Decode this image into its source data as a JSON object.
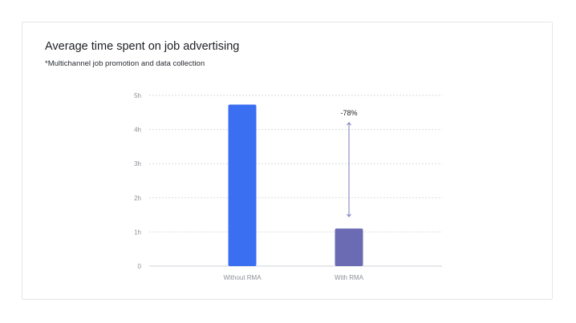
{
  "chart_data": {
    "type": "bar",
    "title": "Average time spent on job advertising",
    "subtitle": "*Multichannel job promotion and data collection",
    "categories": [
      "Without RMA",
      "With RMA"
    ],
    "values": [
      4.73,
      1.1
    ],
    "colors": [
      "#3b6ff2",
      "#6b6bb4"
    ],
    "ylim": [
      0,
      5
    ],
    "yticks": [
      {
        "value": 0,
        "label": "0"
      },
      {
        "value": 1,
        "label": "1h"
      },
      {
        "value": 2,
        "label": "2h"
      },
      {
        "value": 3,
        "label": "3h"
      },
      {
        "value": 4,
        "label": "4h"
      },
      {
        "value": 5,
        "label": "5h"
      }
    ],
    "grid": true,
    "annotation": {
      "label": "-78%",
      "from_value": 4.2,
      "to_value": 1.45,
      "category": "With RMA",
      "color": "#7b7bc0"
    },
    "gridline_color": "#d8dbe0",
    "axis_color": "#cfd3d9"
  }
}
